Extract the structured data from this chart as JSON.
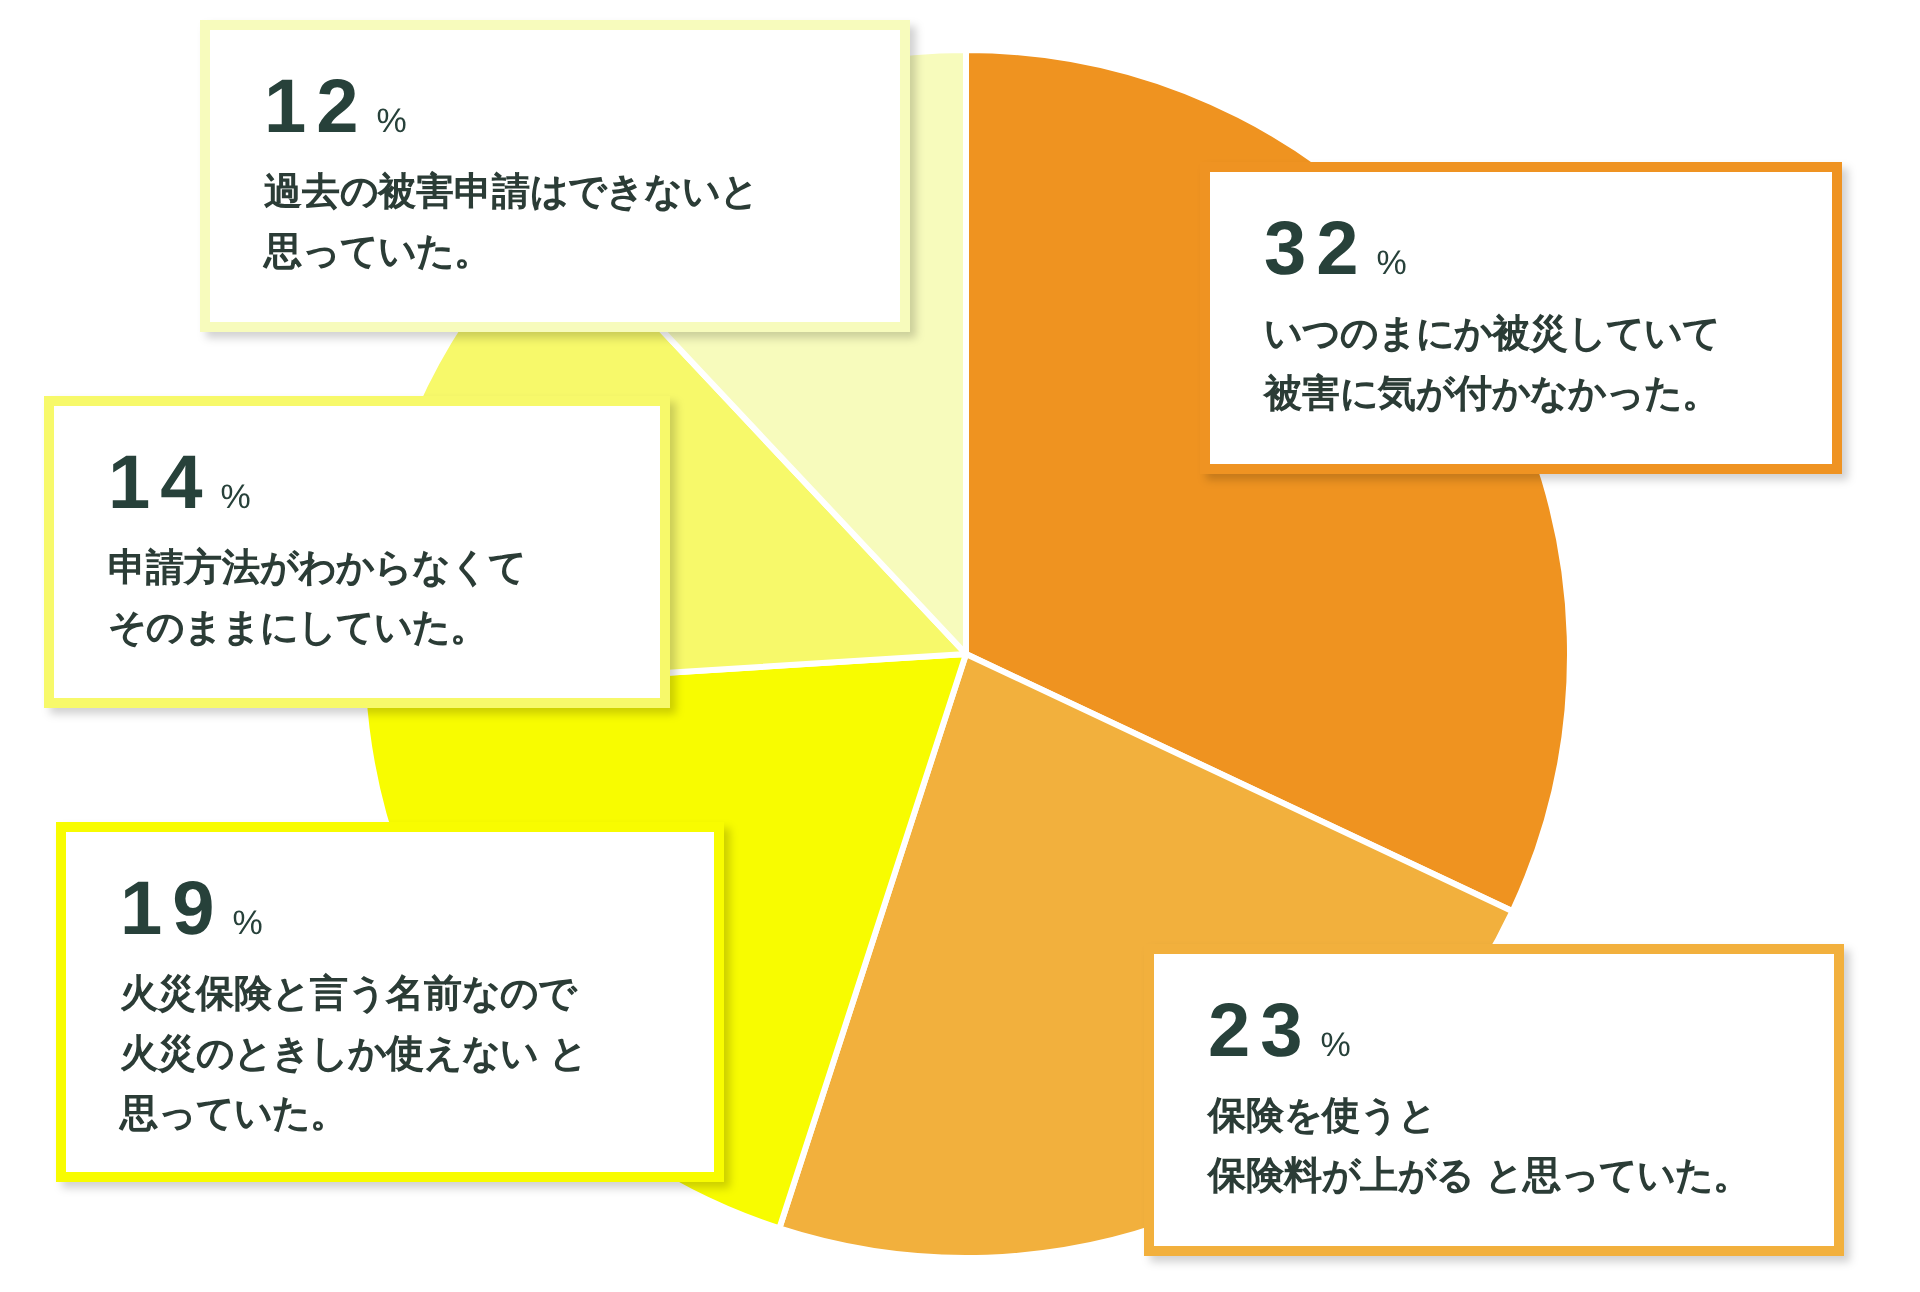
{
  "chart_data": {
    "type": "pie",
    "categories": [
      "いつのまにか被災していて被害に気が付かなかった。",
      "保険を使うと保険料が上がる と思っていた。",
      "火災保険と言う名前なので火災のときしか使えない と思っていた。",
      "申請方法がわからなくてそのままにしていた。",
      "過去の被害申請はできないと思っていた。"
    ],
    "values": [
      32,
      23,
      19,
      14,
      12
    ],
    "colors": [
      "#ef9320",
      "#f2b03d",
      "#f8fc00",
      "#f7f96a",
      "#f7fbbc"
    ],
    "value_labels": [
      "32%",
      "23%",
      "19%",
      "14%",
      "12%"
    ]
  }
}
